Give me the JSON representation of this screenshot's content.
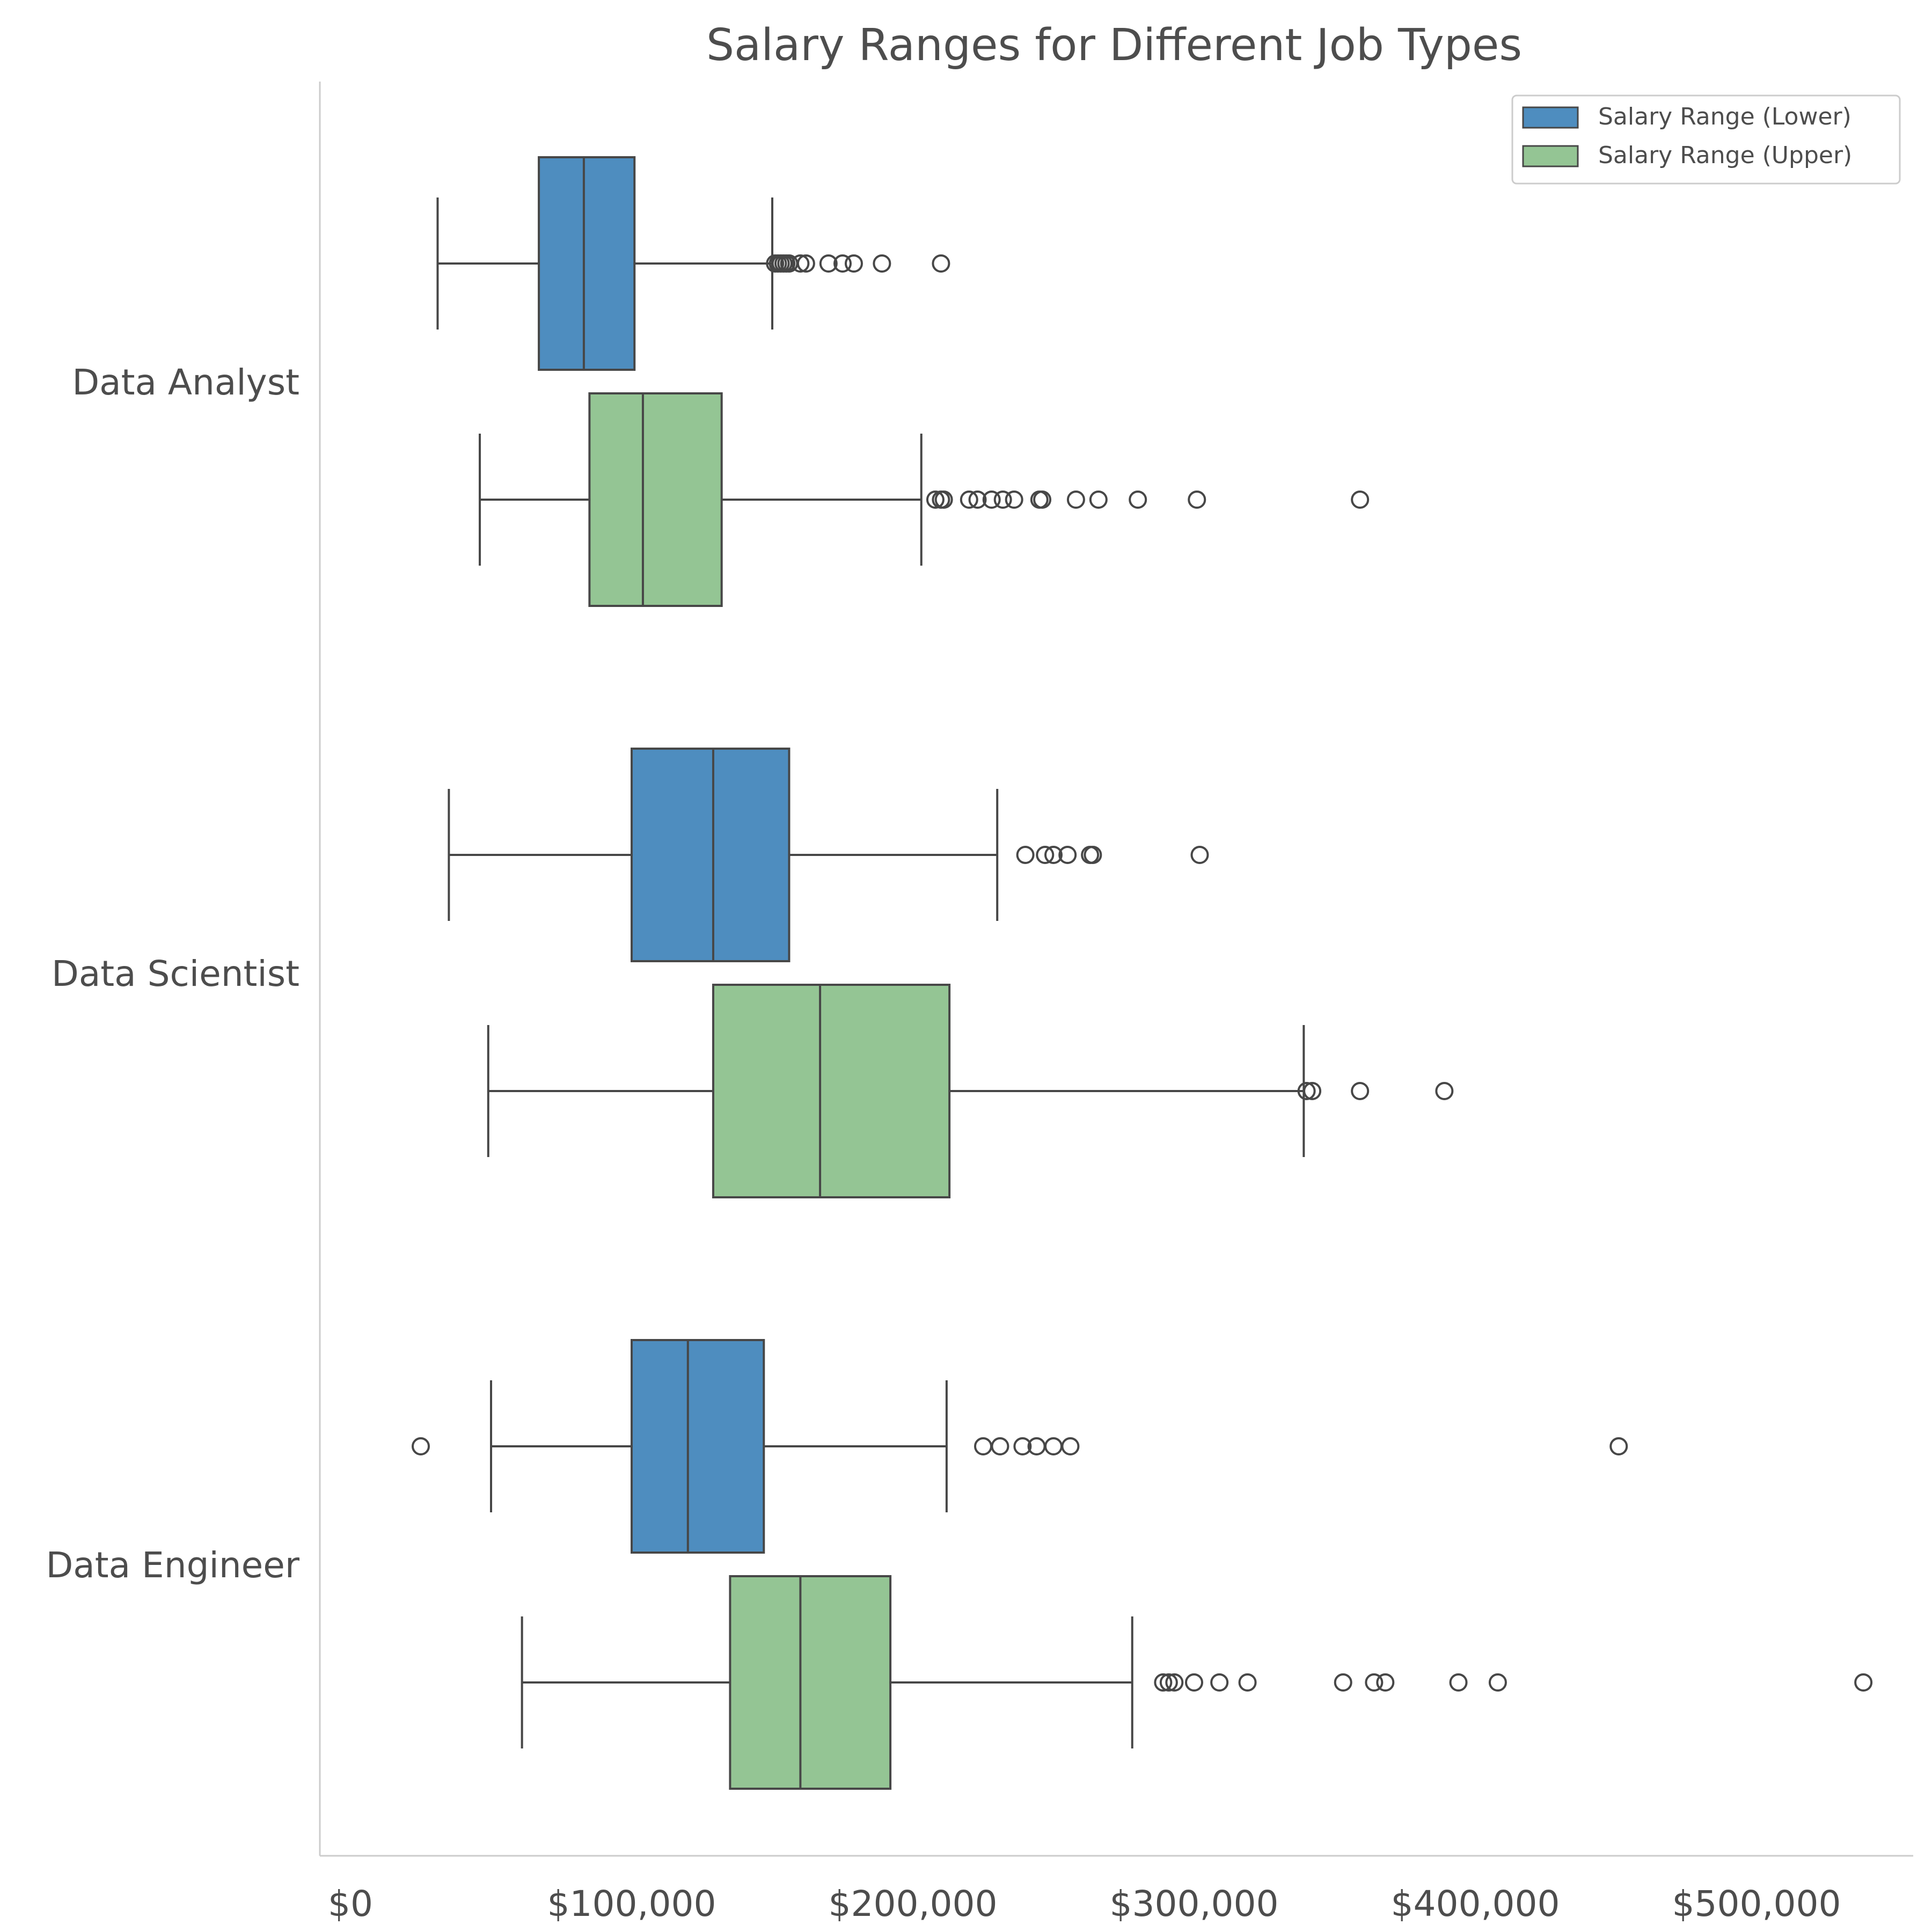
{
  "chart_data": {
    "type": "box",
    "orientation": "horizontal",
    "title": "Salary Ranges for Different Job Types",
    "xlabel": "",
    "ylabel": "",
    "x_ticks": [
      0,
      100000,
      200000,
      300000,
      400000,
      500000
    ],
    "x_tick_labels": [
      "$0",
      "$100,000",
      "$200,000",
      "$300,000",
      "$400,000",
      "$500,000"
    ],
    "xlim": [
      -1000,
      566000
    ],
    "grid": false,
    "legend_position": "top-right",
    "categories": [
      "Data Analyst",
      "Data Scientist",
      "Data Engineer"
    ],
    "series": [
      {
        "name": "Salary Range (Lower)",
        "color": "#4e8dbf",
        "boxes": [
          {
            "category": "Data Analyst",
            "whisker_low": 31000,
            "q1": 67000,
            "median": 83000,
            "q3": 101000,
            "whisker_high": 150000,
            "outliers": [
              151000,
              152000,
              153000,
              154000,
              155000,
              156000,
              160000,
              162000,
              170000,
              175000,
              179000,
              189000,
              210000
            ]
          },
          {
            "category": "Data Scientist",
            "whisker_low": 35000,
            "q1": 100000,
            "median": 129000,
            "q3": 156000,
            "whisker_high": 230000,
            "outliers": [
              240000,
              247000,
              250000,
              255000,
              263000,
              264000,
              302000
            ]
          },
          {
            "category": "Data Engineer",
            "whisker_low": 50000,
            "q1": 100000,
            "median": 120000,
            "q3": 147000,
            "whisker_high": 212000,
            "outliers": [
              25000,
              225000,
              231000,
              239000,
              244000,
              250000,
              256000,
              451000
            ]
          }
        ]
      },
      {
        "name": "Salary Range (Upper)",
        "color": "#94c594",
        "boxes": [
          {
            "category": "Data Analyst",
            "whisker_low": 46000,
            "q1": 85000,
            "median": 104000,
            "q3": 132000,
            "whisker_high": 203000,
            "outliers": [
              208000,
              210000,
              211000,
              220000,
              223000,
              228000,
              232000,
              236000,
              245000,
              246000,
              258000,
              266000,
              280000,
              301000,
              359000
            ]
          },
          {
            "category": "Data Scientist",
            "whisker_low": 49000,
            "q1": 129000,
            "median": 167000,
            "q3": 213000,
            "whisker_high": 339000,
            "outliers": [
              340000,
              342000,
              359000,
              389000
            ]
          },
          {
            "category": "Data Engineer",
            "whisker_low": 61000,
            "q1": 135000,
            "median": 160000,
            "q3": 192000,
            "whisker_high": 278000,
            "outliers": [
              289000,
              291000,
              293000,
              300000,
              309000,
              319000,
              353000,
              364000,
              368000,
              394000,
              408000,
              538000
            ]
          }
        ]
      }
    ]
  }
}
